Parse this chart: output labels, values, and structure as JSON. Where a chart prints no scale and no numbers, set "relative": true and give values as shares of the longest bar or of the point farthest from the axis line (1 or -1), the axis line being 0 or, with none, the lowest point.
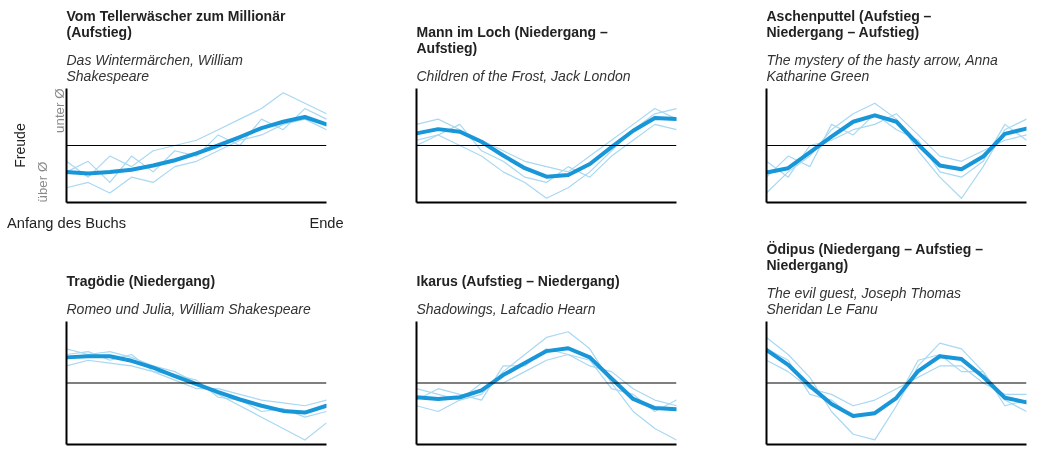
{
  "chart_data": [
    {
      "type": "line",
      "title": "Vom Tellerwäscher zum Millionär (Aufstieg)",
      "subtitle": "Das Wintermärchen, William Shakespeare",
      "ylabel": "Freude",
      "annotations": [
        "unter Ø",
        "über Ø"
      ],
      "relative": true,
      "ref_lines": [
        {
          "axis": "y",
          "value": 0,
          "color": "#000000"
        }
      ],
      "categories": [
        "Anfang des Buchs",
        null,
        null,
        null,
        null,
        null,
        null,
        null,
        null,
        null,
        null,
        null,
        "Ende"
      ],
      "series": [
        {
          "color": "#a8d8f2",
          "values": [
            -0.3,
            -0.6,
            -0.2,
            -0.4,
            -0.1,
            0.0,
            0.1,
            0.3,
            0.5,
            0.7,
            1.0,
            0.8,
            0.6
          ]
        },
        {
          "color": "#a8d8f2",
          "values": [
            -0.8,
            -0.7,
            -0.9,
            -0.6,
            -0.7,
            -0.4,
            -0.3,
            -0.1,
            0.1,
            0.2,
            0.4,
            0.5,
            0.3
          ]
        },
        {
          "color": "#a8d8f2",
          "values": [
            -0.5,
            -0.3,
            -0.7,
            -0.2,
            -0.5,
            -0.1,
            -0.2,
            0.2,
            0.0,
            0.5,
            0.3,
            0.7,
            0.5
          ]
        },
        {
          "color": "#1996d8",
          "values": [
            -0.5,
            -0.53,
            -0.5,
            -0.46,
            -0.38,
            -0.28,
            -0.15,
            0,
            0.16,
            0.33,
            0.45,
            0.54,
            0.4
          ]
        }
      ]
    },
    {
      "type": "line",
      "title": "Mann im Loch (Niedergang – Aufstieg)",
      "subtitle": "Children of the Frost, Jack London",
      "relative": true,
      "ref_lines": [
        {
          "axis": "y",
          "value": 0,
          "color": "#000000"
        }
      ],
      "categories": [
        null,
        null,
        null,
        null,
        null,
        null,
        null,
        null,
        null,
        null,
        null,
        null,
        null
      ],
      "series": [
        {
          "color": "#a8d8f2",
          "values": [
            0.1,
            0.2,
            0.0,
            -0.2,
            -0.5,
            -0.7,
            -1.0,
            -0.8,
            -0.5,
            -0.1,
            0.3,
            0.6,
            0.7
          ]
        },
        {
          "color": "#a8d8f2",
          "values": [
            0.4,
            0.5,
            0.3,
            0.1,
            -0.1,
            -0.3,
            -0.4,
            -0.5,
            -0.2,
            0.1,
            0.4,
            0.7,
            0.5
          ]
        },
        {
          "color": "#a8d8f2",
          "values": [
            0.0,
            0.2,
            0.4,
            -0.1,
            -0.3,
            -0.6,
            -0.7,
            -0.4,
            -0.6,
            -0.2,
            0.1,
            0.4,
            0.3
          ]
        },
        {
          "color": "#1996d8",
          "values": [
            0.23,
            0.31,
            0.26,
            0.07,
            -0.19,
            -0.43,
            -0.59,
            -0.56,
            -0.35,
            -0.03,
            0.28,
            0.52,
            0.5
          ]
        }
      ]
    },
    {
      "type": "line",
      "title": "Aschenputtel (Aufstieg – Niedergang – Aufstieg)",
      "subtitle": "The mystery of the hasty arrow, Anna Katharine Green",
      "relative": true,
      "ref_lines": [
        {
          "axis": "y",
          "value": 0,
          "color": "#000000"
        }
      ],
      "categories": [
        null,
        null,
        null,
        null,
        null,
        null,
        null,
        null,
        null,
        null,
        null,
        null,
        null
      ],
      "series": [
        {
          "color": "#a8d8f2",
          "values": [
            -0.9,
            -0.5,
            -0.2,
            0.3,
            0.6,
            0.8,
            0.5,
            -0.1,
            -0.6,
            -1.0,
            -0.4,
            0.3,
            0.5
          ]
        },
        {
          "color": "#a8d8f2",
          "values": [
            -0.3,
            -0.6,
            0.0,
            0.1,
            0.3,
            0.4,
            0.6,
            0.2,
            -0.2,
            -0.3,
            -0.1,
            0.1,
            0.2
          ]
        },
        {
          "color": "#a8d8f2",
          "values": [
            -0.6,
            -0.2,
            -0.4,
            0.4,
            0.2,
            0.6,
            0.3,
            0.1,
            -0.5,
            -0.6,
            -0.3,
            0.4,
            0.1
          ]
        },
        {
          "color": "#1996d8",
          "values": [
            -0.51,
            -0.43,
            -0.13,
            0.17,
            0.45,
            0.57,
            0.45,
            0.02,
            -0.38,
            -0.45,
            -0.21,
            0.22,
            0.32
          ]
        }
      ]
    },
    {
      "type": "line",
      "title": "Tragödie (Niedergang)",
      "subtitle": "Romeo und Julia, William Shakespeare",
      "relative": true,
      "ref_lines": [
        {
          "axis": "y",
          "value": 0,
          "color": "#000000"
        }
      ],
      "categories": [
        null,
        null,
        null,
        null,
        null,
        null,
        null,
        null,
        null,
        null,
        null,
        null,
        null
      ],
      "series": [
        {
          "color": "#a8d8f2",
          "values": [
            0.6,
            0.5,
            0.55,
            0.45,
            0.3,
            0.2,
            0.0,
            -0.2,
            -0.4,
            -0.6,
            -0.8,
            -1.0,
            -0.7
          ]
        },
        {
          "color": "#a8d8f2",
          "values": [
            0.3,
            0.4,
            0.35,
            0.3,
            0.2,
            0.05,
            -0.1,
            -0.1,
            -0.2,
            -0.3,
            -0.35,
            -0.4,
            -0.3
          ]
        },
        {
          "color": "#a8d8f2",
          "values": [
            0.5,
            0.55,
            0.4,
            0.5,
            0.2,
            0.15,
            0.05,
            -0.25,
            -0.3,
            -0.5,
            -0.45,
            -0.6,
            -0.5
          ]
        },
        {
          "color": "#1996d8",
          "values": [
            0.45,
            0.47,
            0.47,
            0.39,
            0.27,
            0.12,
            -0.02,
            -0.16,
            -0.29,
            -0.4,
            -0.49,
            -0.52,
            -0.4
          ]
        }
      ]
    },
    {
      "type": "line",
      "title": "Ikarus (Aufstieg – Niedergang)",
      "subtitle": "Shadowings, Lafcadio Hearn",
      "relative": true,
      "ref_lines": [
        {
          "axis": "y",
          "value": 0,
          "color": "#000000"
        }
      ],
      "categories": [
        null,
        null,
        null,
        null,
        null,
        null,
        null,
        null,
        null,
        null,
        null,
        null,
        null
      ],
      "series": [
        {
          "color": "#a8d8f2",
          "values": [
            -0.4,
            -0.5,
            -0.3,
            -0.2,
            0.2,
            0.5,
            0.8,
            0.9,
            0.6,
            0.0,
            -0.5,
            -0.8,
            -1.0
          ]
        },
        {
          "color": "#a8d8f2",
          "values": [
            -0.1,
            -0.2,
            -0.3,
            0.0,
            0.0,
            0.2,
            0.4,
            0.5,
            0.3,
            0.2,
            -0.1,
            -0.3,
            -0.4
          ]
        },
        {
          "color": "#a8d8f2",
          "values": [
            -0.3,
            -0.1,
            -0.2,
            -0.3,
            0.3,
            0.3,
            0.6,
            0.5,
            0.4,
            -0.1,
            -0.2,
            -0.5,
            -0.3
          ]
        },
        {
          "color": "#1996d8",
          "values": [
            -0.25,
            -0.28,
            -0.25,
            -0.13,
            0.14,
            0.35,
            0.56,
            0.61,
            0.45,
            0.08,
            -0.28,
            -0.44,
            -0.46
          ]
        }
      ]
    },
    {
      "type": "line",
      "title": "Ödipus (Niedergang – Aufstieg – Niedergang)",
      "subtitle": "The evil guest, Joseph Thomas Sheridan Le Fanu",
      "relative": true,
      "ref_lines": [
        {
          "axis": "y",
          "value": 0,
          "color": "#000000"
        }
      ],
      "categories": [
        null,
        null,
        null,
        null,
        null,
        null,
        null,
        null,
        null,
        null,
        null,
        null,
        null
      ],
      "series": [
        {
          "color": "#a8d8f2",
          "values": [
            0.8,
            0.5,
            0.1,
            -0.5,
            -0.9,
            -1.0,
            -0.4,
            0.3,
            0.7,
            0.6,
            0.2,
            -0.3,
            -0.5
          ]
        },
        {
          "color": "#a8d8f2",
          "values": [
            0.4,
            0.2,
            -0.1,
            -0.2,
            -0.4,
            -0.3,
            -0.1,
            0.1,
            0.3,
            0.3,
            0.0,
            -0.2,
            -0.2
          ]
        },
        {
          "color": "#a8d8f2",
          "values": [
            0.6,
            0.4,
            -0.2,
            -0.3,
            -0.6,
            -0.5,
            -0.3,
            0.4,
            0.5,
            0.2,
            0.2,
            -0.4,
            -0.3
          ]
        },
        {
          "color": "#1996d8",
          "values": [
            0.58,
            0.32,
            -0.05,
            -0.37,
            -0.58,
            -0.53,
            -0.26,
            0.21,
            0.47,
            0.42,
            0.11,
            -0.26,
            -0.34
          ]
        }
      ]
    }
  ]
}
